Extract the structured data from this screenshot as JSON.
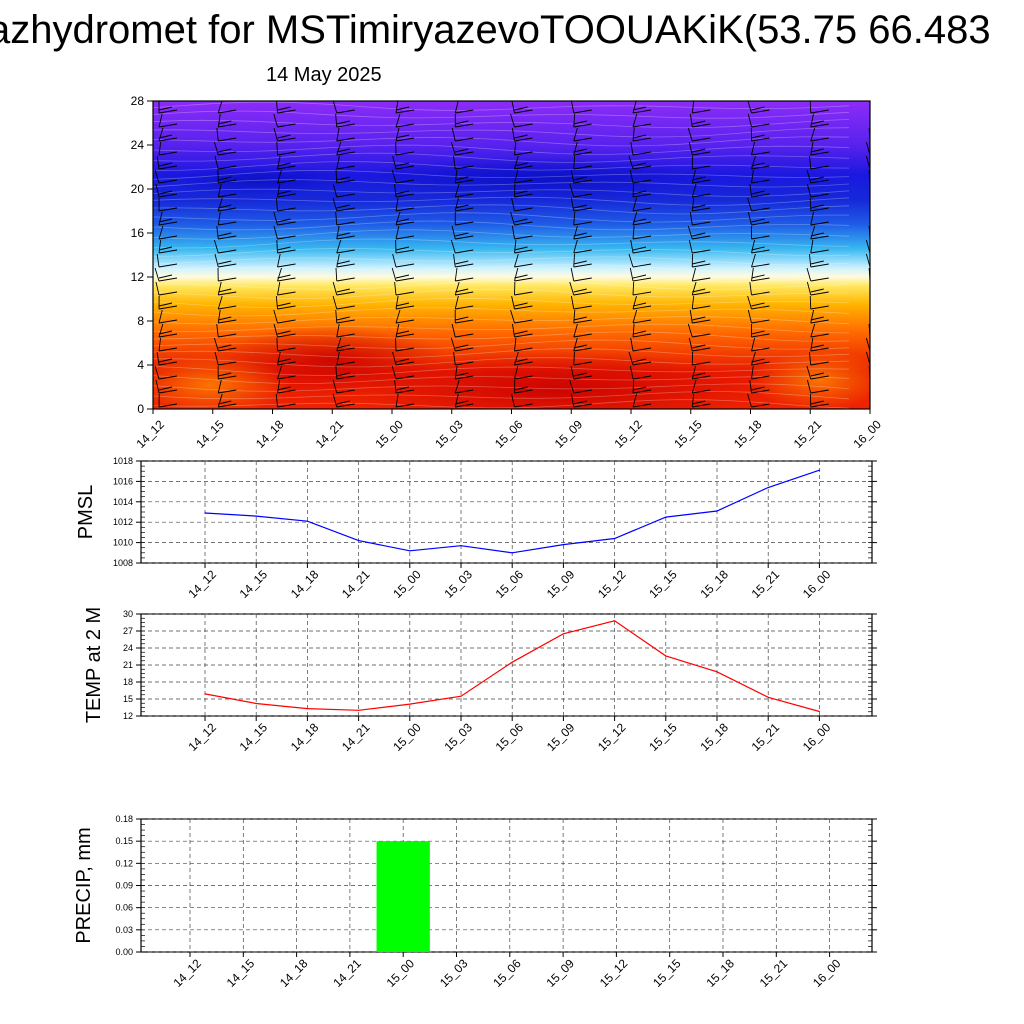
{
  "header": {
    "title": "azhydromet for MSTimiryazevoTOOUAKiK(53.75 66.483",
    "date": "14 May 2025"
  },
  "colors": {
    "pmsl_line": "#0000ff",
    "temp_line": "#ff0000",
    "precip_bar": "#00ff00"
  },
  "chart_data": [
    {
      "type": "heatmap",
      "title": "",
      "x_ticks": [
        "14_12",
        "14_15",
        "14_18",
        "14_21",
        "15_00",
        "15_03",
        "15_06",
        "15_09",
        "15_12",
        "15_15",
        "15_18",
        "15_21",
        "16_00"
      ],
      "y_ticks": [
        "0",
        "4",
        "8",
        "12",
        "16",
        "20",
        "24",
        "28"
      ],
      "ylim": [
        0,
        28
      ],
      "colormap": "red at bottom through orange, yellow, white, cyan, blue to violet at top",
      "overlay": "wind barbs"
    },
    {
      "type": "line",
      "ylabel": "PMSL",
      "ylim": [
        1008,
        1018
      ],
      "y_ticks": [
        "1008",
        "1010",
        "1012",
        "1014",
        "1016",
        "1018"
      ],
      "x_ticks": [
        "14_12",
        "14_15",
        "14_18",
        "14_21",
        "15_00",
        "15_03",
        "15_06",
        "15_09",
        "15_12",
        "15_15",
        "15_18",
        "15_21",
        "16_00"
      ],
      "values": [
        1012.9,
        1012.6,
        1012.1,
        1010.2,
        1009.2,
        1009.7,
        1009.0,
        1009.8,
        1010.4,
        1012.5,
        1013.1,
        1015.4,
        1017.1
      ],
      "grid": true
    },
    {
      "type": "line",
      "ylabel": "TEMP at 2 M",
      "ylim": [
        12,
        30
      ],
      "y_ticks": [
        "12",
        "15",
        "18",
        "21",
        "24",
        "27",
        "30"
      ],
      "x_ticks": [
        "14_12",
        "14_15",
        "14_18",
        "14_21",
        "15_00",
        "15_03",
        "15_06",
        "15_09",
        "15_12",
        "15_15",
        "15_18",
        "15_21",
        "16_00"
      ],
      "values": [
        15.9,
        14.2,
        13.3,
        13.0,
        14.1,
        15.5,
        21.5,
        26.5,
        28.8,
        22.6,
        19.8,
        15.3,
        12.8
      ],
      "grid": true
    },
    {
      "type": "bar",
      "ylabel": "PRECIP, mm",
      "ylim": [
        0,
        0.18
      ],
      "y_ticks": [
        "0.00",
        "0.03",
        "0.06",
        "0.09",
        "0.12",
        "0.15",
        "0.18"
      ],
      "x_ticks": [
        "14_12",
        "14_15",
        "14_18",
        "14_21",
        "15_00",
        "15_03",
        "15_06",
        "15_09",
        "15_12",
        "15_15",
        "15_18",
        "15_21",
        "16_00"
      ],
      "values": [
        0,
        0,
        0,
        0,
        0.15,
        0,
        0,
        0,
        0,
        0,
        0,
        0,
        0
      ],
      "grid": true
    }
  ]
}
